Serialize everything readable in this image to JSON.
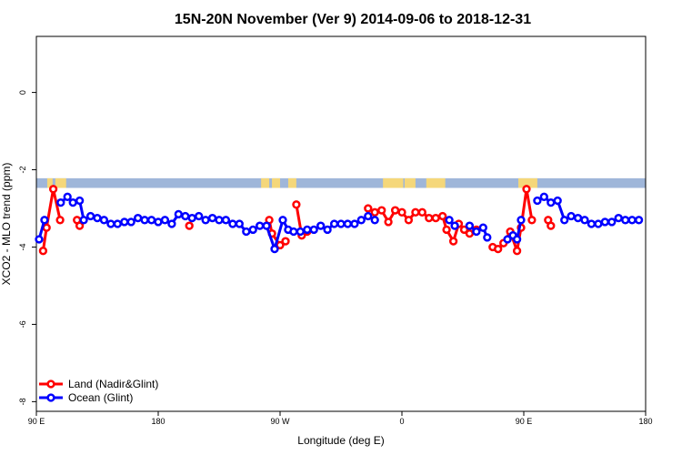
{
  "chart_data": {
    "type": "line",
    "title": "15N-20N November (Ver 9)   2014-09-06 to 2018-12-31",
    "xlabel": "Longitude (deg E)",
    "ylabel": "XCO2 - MLO trend (ppm)",
    "xlim": [
      90,
      540
    ],
    "ylim": [
      -8.25,
      1.45
    ],
    "x_ticks": [
      {
        "value": 90,
        "label": "90 E"
      },
      {
        "value": 180,
        "label": "180"
      },
      {
        "value": 270,
        "label": "90 W"
      },
      {
        "value": 360,
        "label": "0"
      },
      {
        "value": 450,
        "label": "90 E"
      },
      {
        "value": 540,
        "label": "180"
      }
    ],
    "y_ticks": [
      {
        "value": 0,
        "label": "0"
      },
      {
        "value": -2,
        "label": "-2"
      },
      {
        "value": -4,
        "label": "-4"
      },
      {
        "value": -6,
        "label": "-6"
      },
      {
        "value": -8,
        "label": "-8"
      }
    ],
    "grid": false,
    "legend_position": "bottom-left",
    "colors": {
      "land": "#ff0000",
      "ocean": "#0000ff",
      "map_ocean": "#9fb6d9",
      "map_land": "#f5d77a"
    },
    "series": [
      {
        "name": "Land (Nadir&Glint)",
        "key": "land",
        "segments": [
          [
            [
              95,
              -4.1
            ],
            [
              97.5,
              -3.5
            ],
            [
              102.5,
              -2.5
            ],
            [
              107.5,
              -3.3
            ]
          ],
          [
            [
              120,
              -3.3
            ],
            [
              122,
              -3.45
            ]
          ],
          [
            [
              203,
              -3.45
            ]
          ],
          [
            [
              262,
              -3.3
            ],
            [
              264,
              -3.65
            ],
            [
              270,
              -3.95
            ],
            [
              274,
              -3.85
            ]
          ],
          [
            [
              282,
              -2.9
            ],
            [
              286,
              -3.7
            ],
            [
              290,
              -3.6
            ]
          ],
          [
            [
              335,
              -3.0
            ],
            [
              340,
              -3.1
            ],
            [
              345,
              -3.05
            ],
            [
              350,
              -3.35
            ],
            [
              355,
              -3.05
            ],
            [
              360,
              -3.1
            ],
            [
              365,
              -3.3
            ],
            [
              370,
              -3.1
            ],
            [
              375,
              -3.1
            ],
            [
              380,
              -3.25
            ],
            [
              385,
              -3.25
            ],
            [
              390,
              -3.2
            ],
            [
              393,
              -3.55
            ],
            [
              398,
              -3.85
            ],
            [
              402,
              -3.4
            ],
            [
              406,
              -3.55
            ],
            [
              410,
              -3.65
            ],
            [
              415,
              -3.55
            ]
          ],
          [
            [
              427,
              -4.0
            ],
            [
              431,
              -4.05
            ],
            [
              435,
              -3.9
            ],
            [
              440,
              -3.6
            ],
            [
              445,
              -4.1
            ],
            [
              448,
              -3.5
            ],
            [
              452,
              -2.5
            ],
            [
              456,
              -3.3
            ]
          ],
          [
            [
              468,
              -3.3
            ],
            [
              470,
              -3.45
            ]
          ]
        ]
      },
      {
        "name": "Ocean (Glint)",
        "key": "ocean",
        "segments": [
          [
            [
              92,
              -3.8
            ],
            [
              96,
              -3.3
            ]
          ],
          [
            [
              108,
              -2.85
            ],
            [
              113,
              -2.7
            ],
            [
              117,
              -2.85
            ],
            [
              122,
              -2.8
            ],
            [
              125,
              -3.3
            ],
            [
              130,
              -3.2
            ],
            [
              135,
              -3.25
            ],
            [
              140,
              -3.3
            ],
            [
              145,
              -3.4
            ],
            [
              150,
              -3.4
            ],
            [
              155,
              -3.35
            ],
            [
              160,
              -3.35
            ],
            [
              165,
              -3.25
            ],
            [
              170,
              -3.3
            ],
            [
              175,
              -3.3
            ],
            [
              180,
              -3.35
            ],
            [
              185,
              -3.3
            ],
            [
              190,
              -3.4
            ],
            [
              195,
              -3.15
            ],
            [
              200,
              -3.2
            ],
            [
              205,
              -3.25
            ],
            [
              210,
              -3.2
            ],
            [
              215,
              -3.3
            ],
            [
              220,
              -3.25
            ],
            [
              225,
              -3.3
            ],
            [
              230,
              -3.3
            ],
            [
              235,
              -3.4
            ],
            [
              240,
              -3.4
            ],
            [
              245,
              -3.6
            ],
            [
              250,
              -3.55
            ],
            [
              255,
              -3.45
            ],
            [
              260,
              -3.45
            ],
            [
              266,
              -4.05
            ],
            [
              272,
              -3.3
            ],
            [
              276,
              -3.55
            ],
            [
              280,
              -3.6
            ],
            [
              285,
              -3.6
            ],
            [
              290,
              -3.55
            ],
            [
              295,
              -3.55
            ],
            [
              300,
              -3.45
            ],
            [
              305,
              -3.55
            ],
            [
              310,
              -3.4
            ],
            [
              315,
              -3.4
            ],
            [
              320,
              -3.4
            ],
            [
              325,
              -3.4
            ],
            [
              330,
              -3.3
            ],
            [
              335,
              -3.2
            ],
            [
              340,
              -3.3
            ]
          ],
          [
            [
              395,
              -3.3
            ],
            [
              399,
              -3.45
            ]
          ],
          [
            [
              410,
              -3.45
            ],
            [
              415,
              -3.6
            ],
            [
              420,
              -3.5
            ],
            [
              423,
              -3.75
            ]
          ],
          [
            [
              438,
              -3.8
            ],
            [
              442,
              -3.7
            ],
            [
              445,
              -3.8
            ],
            [
              448,
              -3.3
            ]
          ],
          [
            [
              460,
              -2.8
            ],
            [
              465,
              -2.7
            ],
            [
              470,
              -2.85
            ],
            [
              475,
              -2.8
            ],
            [
              480,
              -3.3
            ],
            [
              485,
              -3.2
            ],
            [
              490,
              -3.25
            ],
            [
              495,
              -3.3
            ],
            [
              500,
              -3.4
            ],
            [
              505,
              -3.4
            ],
            [
              510,
              -3.35
            ],
            [
              515,
              -3.35
            ],
            [
              520,
              -3.25
            ],
            [
              525,
              -3.3
            ],
            [
              530,
              -3.3
            ],
            [
              535,
              -3.3
            ]
          ]
        ]
      }
    ],
    "map_band": {
      "y_top": -2.22,
      "y_bottom": -2.47,
      "land_spans": [
        [
          98,
          102
        ],
        [
          104,
          112
        ],
        [
          256,
          262
        ],
        [
          264,
          270
        ],
        [
          276,
          282
        ],
        [
          346,
          361
        ],
        [
          362,
          370
        ],
        [
          378,
          392
        ],
        [
          446,
          460
        ]
      ]
    }
  }
}
